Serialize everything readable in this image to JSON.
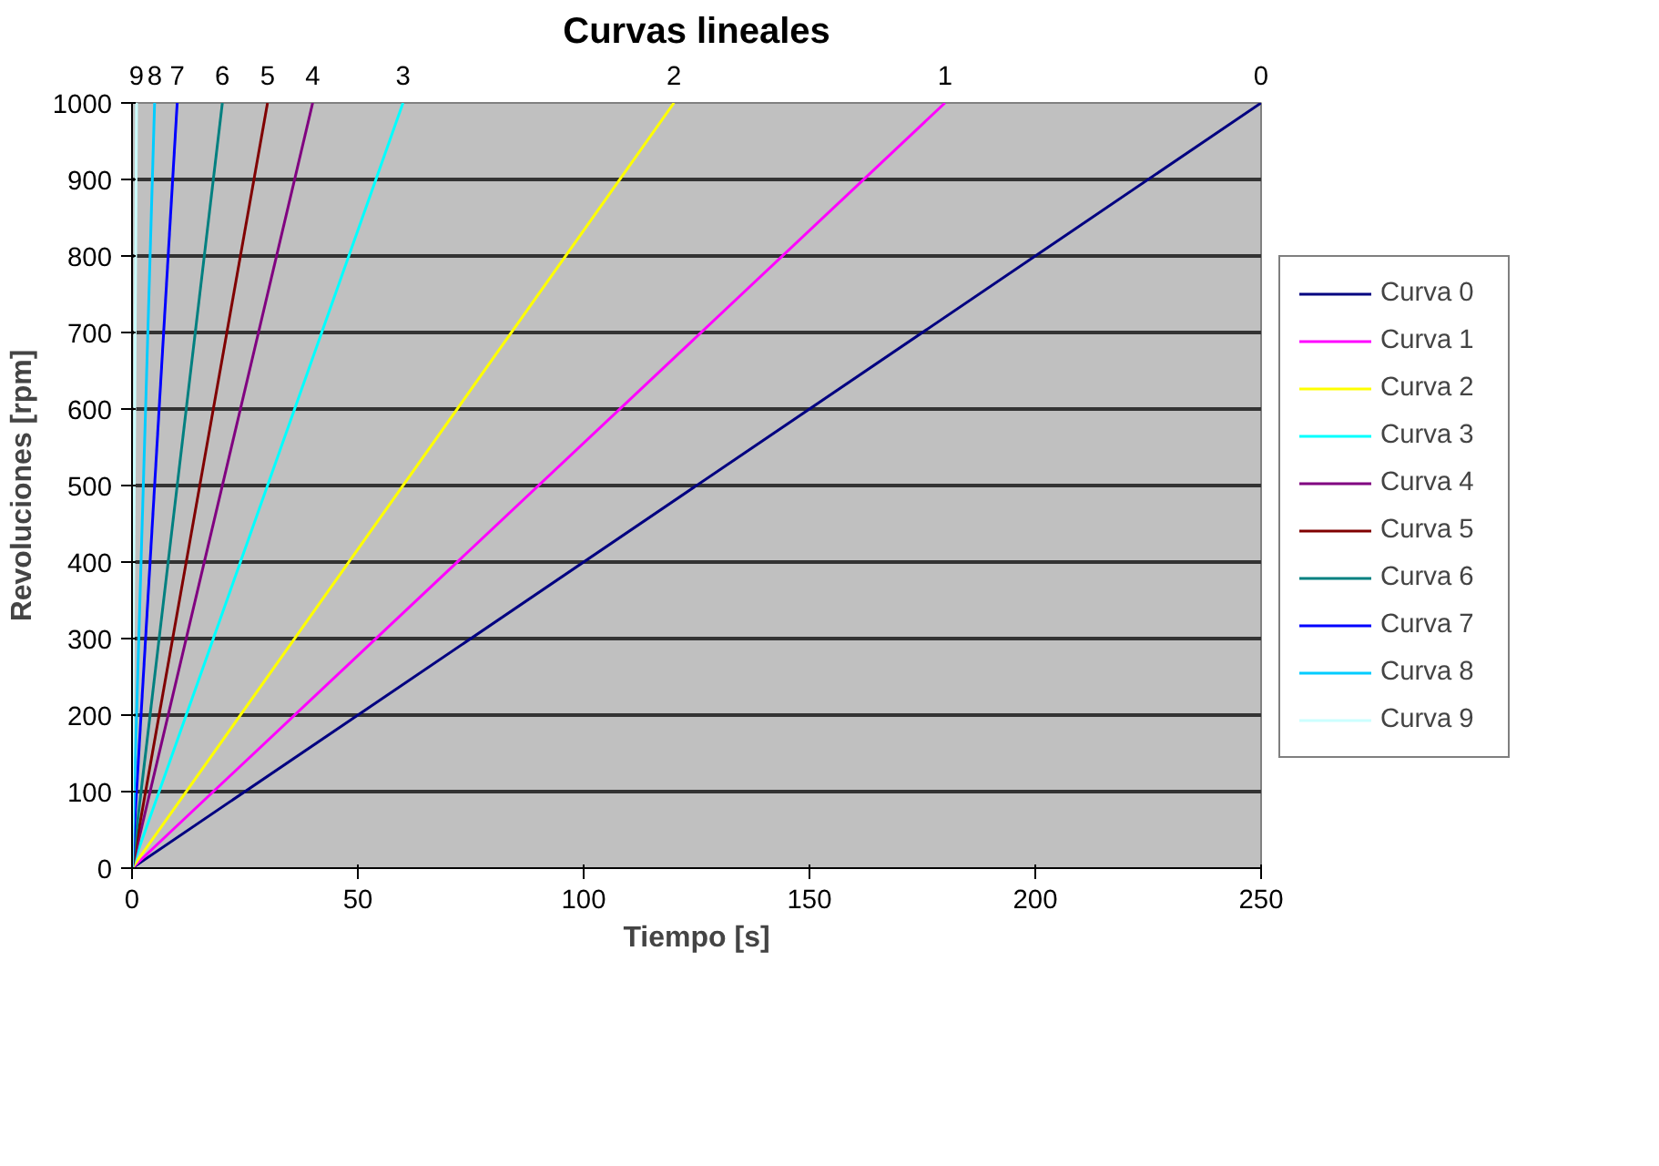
{
  "chart_data": {
    "type": "line",
    "title": "Curvas lineales",
    "xlabel": "Tiempo [s]",
    "ylabel": "Revoluciones [rpm]",
    "xlim": [
      0,
      250
    ],
    "ylim": [
      0,
      1000
    ],
    "xticks": [
      0,
      50,
      100,
      150,
      200,
      250
    ],
    "yticks": [
      0,
      100,
      200,
      300,
      400,
      500,
      600,
      700,
      800,
      900,
      1000
    ],
    "grid": "y",
    "legend": "right",
    "line_style": "solid",
    "marker": "none",
    "series": [
      {
        "name": "Curva 0",
        "color": "#000080",
        "x": [
          0,
          250
        ],
        "values": [
          0,
          1000
        ]
      },
      {
        "name": "Curva 1",
        "color": "#ff00ff",
        "x": [
          0,
          180
        ],
        "values": [
          0,
          1000
        ]
      },
      {
        "name": "Curva 2",
        "color": "#ffff00",
        "x": [
          0,
          120
        ],
        "values": [
          0,
          1000
        ]
      },
      {
        "name": "Curva 3",
        "color": "#00ffff",
        "x": [
          0,
          60
        ],
        "values": [
          0,
          1000
        ]
      },
      {
        "name": "Curva 4",
        "color": "#800080",
        "x": [
          0,
          40
        ],
        "values": [
          0,
          1000
        ]
      },
      {
        "name": "Curva 5",
        "color": "#800000",
        "x": [
          0,
          30
        ],
        "values": [
          0,
          1000
        ]
      },
      {
        "name": "Curva 6",
        "color": "#008080",
        "x": [
          0,
          20
        ],
        "values": [
          0,
          1000
        ]
      },
      {
        "name": "Curva 7",
        "color": "#0000ff",
        "x": [
          0,
          10
        ],
        "values": [
          0,
          1000
        ]
      },
      {
        "name": "Curva 8",
        "color": "#00ccff",
        "x": [
          0,
          5
        ],
        "values": [
          0,
          1000
        ]
      },
      {
        "name": "Curva 9",
        "color": "#ccffff",
        "x": [
          0,
          1
        ],
        "values": [
          0,
          1000
        ]
      }
    ],
    "annotations": [
      {
        "text": "0",
        "x": 250,
        "y": 1000
      },
      {
        "text": "1",
        "x": 180,
        "y": 1000
      },
      {
        "text": "2",
        "x": 120,
        "y": 1000
      },
      {
        "text": "3",
        "x": 60,
        "y": 1000
      },
      {
        "text": "4",
        "x": 40,
        "y": 1000
      },
      {
        "text": "5",
        "x": 30,
        "y": 1000
      },
      {
        "text": "6",
        "x": 20,
        "y": 1000
      },
      {
        "text": "7",
        "x": 10,
        "y": 1000
      },
      {
        "text": "8",
        "x": 5,
        "y": 1000
      },
      {
        "text": "9",
        "x": 1,
        "y": 1000
      }
    ]
  }
}
